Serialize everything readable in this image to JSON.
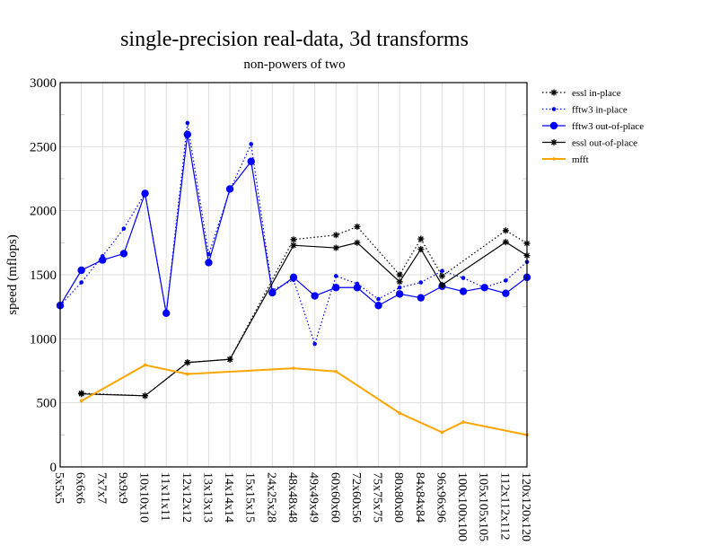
{
  "chart_data": {
    "type": "line",
    "title": "single-precision real-data, 3d transforms",
    "subtitle": "non-powers of two",
    "xlabel": "",
    "ylabel": "speed (mflops)",
    "ylim": [
      0,
      3000
    ],
    "yticks": [
      0,
      500,
      1000,
      1500,
      2000,
      2500,
      3000
    ],
    "grid": true,
    "legend_position": "right",
    "categories": [
      "5x5x5",
      "6x6x6",
      "7x7x7",
      "9x9x9",
      "10x10x10",
      "11x11x11",
      "12x12x12",
      "13x13x13",
      "14x14x14",
      "15x15x15",
      "24x25x28",
      "48x48x48",
      "49x49x49",
      "60x60x60",
      "72x60x56",
      "75x75x75",
      "80x80x80",
      "84x84x84",
      "96x96x96",
      "100x100x100",
      "105x105x105",
      "112x112x112",
      "120x120x120"
    ],
    "series": [
      {
        "name": "essl in-place",
        "color": "#000000",
        "style": "dotted",
        "marker": "star",
        "values": [
          null,
          575,
          null,
          null,
          555,
          null,
          815,
          null,
          840,
          null,
          null,
          1775,
          null,
          1810,
          1875,
          null,
          1500,
          1780,
          1490,
          null,
          null,
          1845,
          1745
        ]
      },
      {
        "name": "fftw3 in-place",
        "color": "#0000ff",
        "style": "dotted",
        "marker": "small-dot",
        "values": [
          1260,
          1440,
          1645,
          1860,
          2135,
          1200,
          2685,
          1660,
          2160,
          2520,
          1380,
          1460,
          960,
          1490,
          1430,
          1310,
          1400,
          1440,
          1530,
          1475,
          1400,
          1455,
          1600
        ]
      },
      {
        "name": "fftw3 out-of-place",
        "color": "#0000ff",
        "style": "solid",
        "marker": "big-dot",
        "values": [
          1260,
          1535,
          1615,
          1665,
          2135,
          1200,
          2595,
          1595,
          2170,
          2385,
          1360,
          1480,
          1335,
          1400,
          1400,
          1260,
          1350,
          1320,
          1410,
          1370,
          1400,
          1355,
          1480
        ]
      },
      {
        "name": "essl out-of-place",
        "color": "#000000",
        "style": "solid",
        "marker": "star",
        "values": [
          null,
          570,
          null,
          null,
          555,
          null,
          815,
          null,
          840,
          null,
          null,
          1730,
          null,
          1710,
          1750,
          null,
          1445,
          1700,
          1420,
          null,
          null,
          1755,
          1650
        ]
      },
      {
        "name": "mfft",
        "color": "#ffa500",
        "style": "solid",
        "marker": "tiny-dot",
        "values": [
          null,
          515,
          null,
          null,
          795,
          null,
          725,
          null,
          null,
          null,
          null,
          770,
          null,
          745,
          null,
          null,
          420,
          null,
          270,
          350,
          null,
          null,
          250
        ]
      }
    ]
  }
}
